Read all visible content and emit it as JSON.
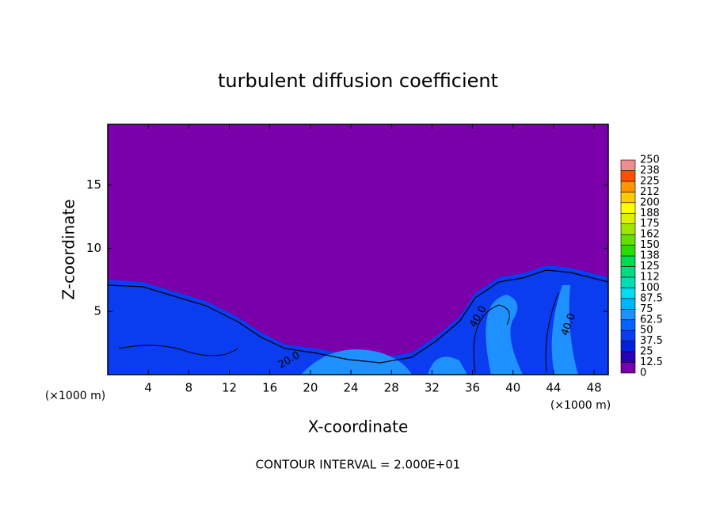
{
  "chart_data": {
    "type": "contour",
    "title": "turbulent diffusion coefficient",
    "x_label": "X-coordinate",
    "y_label": "Z-coordinate",
    "x_unit": "(×1000 m)",
    "footer": "CONTOUR INTERVAL = 2.000E+01",
    "xlim": [
      0,
      49.4
    ],
    "xticks": [
      4,
      8,
      12,
      16,
      20,
      24,
      28,
      32,
      36,
      40,
      44,
      48
    ],
    "ylim": [
      0,
      19.8
    ],
    "yticks": [
      5,
      10,
      15
    ],
    "colorbar": {
      "levels": [
        0,
        12.5,
        25,
        37.5,
        50,
        62.5,
        75,
        87.5,
        100,
        112,
        125,
        138,
        150,
        162,
        175,
        188,
        200,
        212,
        225,
        238,
        250
      ],
      "colors": [
        "#7a00aa",
        "#2a00b8",
        "#0020dc",
        "#0a3cf0",
        "#0064ff",
        "#1e90ff",
        "#00b4ff",
        "#00dcf0",
        "#00e0b4",
        "#00dc82",
        "#00dc50",
        "#28dc00",
        "#64e000",
        "#a0e600",
        "#dcf000",
        "#ffff00",
        "#ffc800",
        "#ff9600",
        "#ff5000",
        "#ff1e1e"
      ],
      "top_color": "#f08c8c"
    },
    "contour_labels": [
      {
        "value": 40,
        "label": "40.0"
      },
      {
        "value": 40,
        "label": "40.0"
      },
      {
        "value": 20,
        "label": "20.0"
      }
    ]
  }
}
